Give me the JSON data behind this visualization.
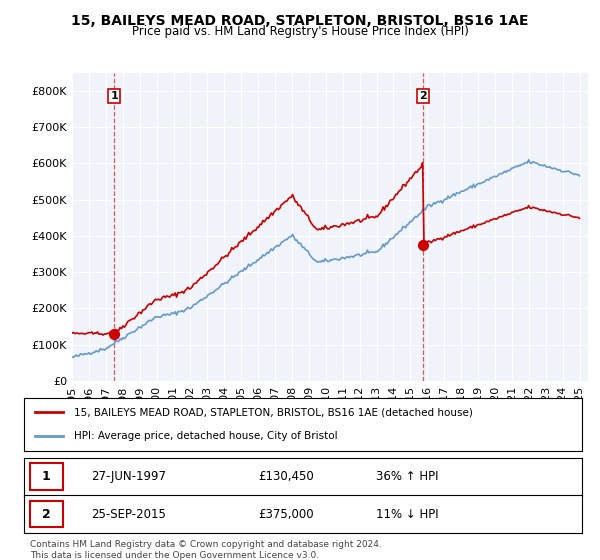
{
  "title": "15, BAILEYS MEAD ROAD, STAPLETON, BRISTOL, BS16 1AE",
  "subtitle": "Price paid vs. HM Land Registry's House Price Index (HPI)",
  "legend_line1": "15, BAILEYS MEAD ROAD, STAPLETON, BRISTOL, BS16 1AE (detached house)",
  "legend_line2": "HPI: Average price, detached house, City of Bristol",
  "table_rows": [
    {
      "num": "1",
      "date": "27-JUN-1997",
      "price": "£130,450",
      "change": "36% ↑ HPI"
    },
    {
      "num": "2",
      "date": "25-SEP-2015",
      "price": "£375,000",
      "change": "11% ↓ HPI"
    }
  ],
  "footnote": "Contains HM Land Registry data © Crown copyright and database right 2024.\nThis data is licensed under the Open Government Licence v3.0.",
  "sale1_year": 1997.49,
  "sale1_price": 130450,
  "sale2_year": 2015.73,
  "sale2_price": 375000,
  "plot_bg": "#f0f4fa",
  "grid_color": "#ffffff",
  "red_line_color": "#cc0000",
  "blue_line_color": "#6699cc",
  "marker_color": "#cc0000",
  "dashed_color": "#cc3333",
  "ylim_max": 850000,
  "ylim_min": 0
}
